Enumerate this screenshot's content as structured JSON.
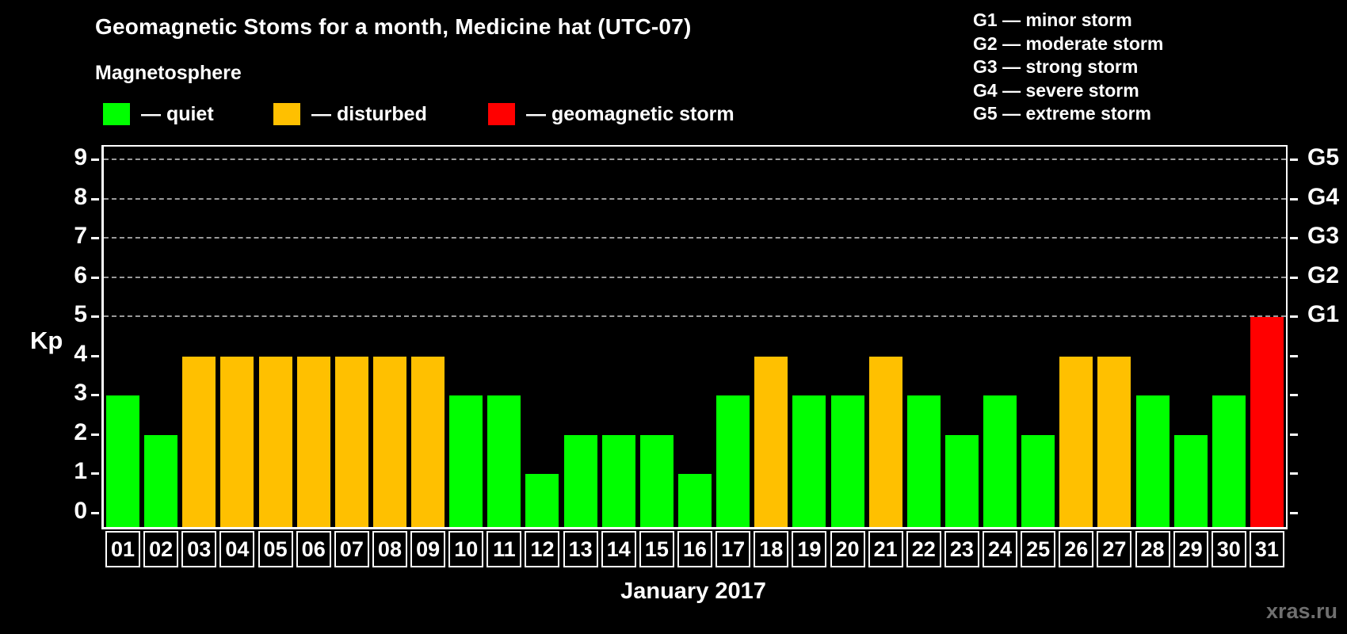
{
  "title": "Geomagnetic Stoms for a month, Medicine hat (UTC-07)",
  "subtitle": "Magnetosphere",
  "watermark": "xras.ru",
  "legend": {
    "quiet": {
      "label": "— quiet",
      "color": "#00ff00"
    },
    "disturbed": {
      "label": "— disturbed",
      "color": "#ffc000"
    },
    "storm": {
      "label": "— geomagnetic storm",
      "color": "#ff0000"
    }
  },
  "g_scale_legend": {
    "lines": [
      "G1 — minor storm",
      "G2 — moderate storm",
      "G3 — strong storm",
      "G4 — severe storm",
      "G5 — extreme storm"
    ]
  },
  "chart_data": {
    "type": "bar",
    "title": "Geomagnetic Stoms for a month, Medicine hat (UTC-07)",
    "xlabel": "January 2017",
    "ylabel": "Kp",
    "ylim": [
      0,
      9
    ],
    "y_ticks": [
      0,
      1,
      2,
      3,
      4,
      5,
      6,
      7,
      8,
      9
    ],
    "grid": "horizontal dashed gray lines at Kp 5,6,7,8,9 only",
    "legend_position": "top-left",
    "categories": [
      "01",
      "02",
      "03",
      "04",
      "05",
      "06",
      "07",
      "08",
      "09",
      "10",
      "11",
      "12",
      "13",
      "14",
      "15",
      "16",
      "17",
      "18",
      "19",
      "20",
      "21",
      "22",
      "23",
      "24",
      "25",
      "26",
      "27",
      "28",
      "29",
      "30",
      "31"
    ],
    "values": [
      3,
      2,
      4,
      4,
      4,
      4,
      4,
      4,
      4,
      3,
      3,
      1,
      2,
      2,
      2,
      1,
      3,
      4,
      3,
      3,
      4,
      3,
      2,
      3,
      2,
      4,
      4,
      3,
      2,
      3,
      5
    ],
    "statuses": [
      "quiet",
      "quiet",
      "disturbed",
      "disturbed",
      "disturbed",
      "disturbed",
      "disturbed",
      "disturbed",
      "disturbed",
      "quiet",
      "quiet",
      "quiet",
      "quiet",
      "quiet",
      "quiet",
      "quiet",
      "quiet",
      "disturbed",
      "quiet",
      "quiet",
      "disturbed",
      "quiet",
      "quiet",
      "quiet",
      "quiet",
      "disturbed",
      "disturbed",
      "quiet",
      "quiet",
      "quiet",
      "storm"
    ],
    "status_colors": {
      "quiet": "#00ff00",
      "disturbed": "#ffc000",
      "storm": "#ff0000"
    },
    "right_axis": [
      {
        "kp": 5,
        "label": "G1"
      },
      {
        "kp": 6,
        "label": "G2"
      },
      {
        "kp": 7,
        "label": "G3"
      },
      {
        "kp": 8,
        "label": "G4"
      },
      {
        "kp": 9,
        "label": "G5"
      }
    ]
  }
}
